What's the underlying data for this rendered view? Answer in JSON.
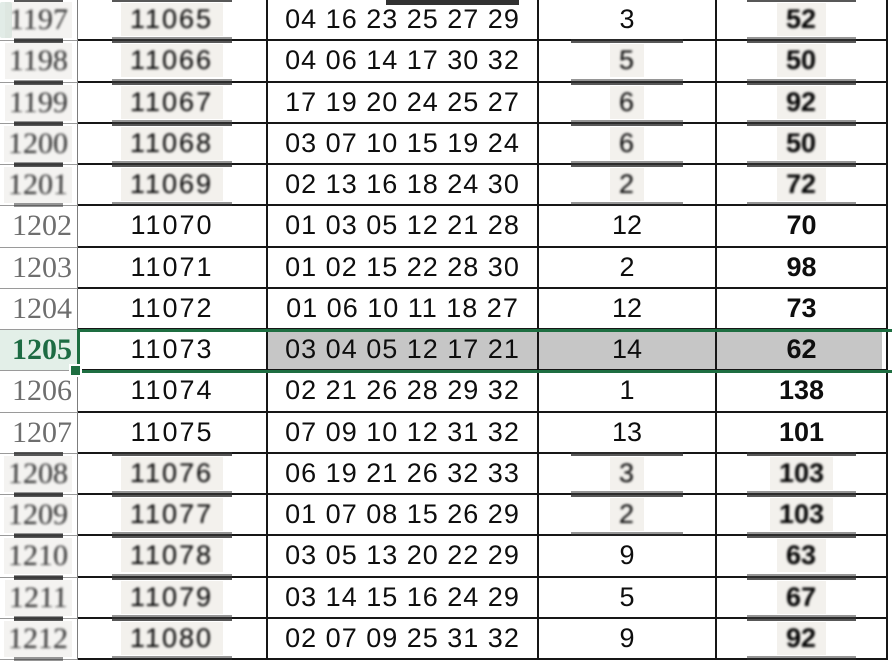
{
  "selection": {
    "selected_row_label": "1205",
    "active_cell_value": "11073"
  },
  "colors": {
    "selection_border_green": "#1e6e41",
    "selected_header_text": "#1d6b43",
    "selected_header_bg": "#e3efe8",
    "selected_range_fill": "#c6c6c6",
    "grid_line": "#161616",
    "row_header_text": "#6e6e6e"
  },
  "rows": [
    {
      "index": "1197",
      "draw_no": "11065",
      "numbers": "04 16 23 25 27 29",
      "count": "3",
      "value": "52"
    },
    {
      "index": "1198",
      "draw_no": "11066",
      "numbers": "04 06 14 17 30 32",
      "count": "5",
      "value": "50"
    },
    {
      "index": "1199",
      "draw_no": "11067",
      "numbers": "17 19 20 24 25 27",
      "count": "6",
      "value": "92"
    },
    {
      "index": "1200",
      "draw_no": "11068",
      "numbers": "03 07 10 15 19 24",
      "count": "6",
      "value": "50"
    },
    {
      "index": "1201",
      "draw_no": "11069",
      "numbers": "02 13 16 18 24 30",
      "count": "2",
      "value": "72"
    },
    {
      "index": "1202",
      "draw_no": "11070",
      "numbers": "01 03 05 12 21 28",
      "count": "12",
      "value": "70"
    },
    {
      "index": "1203",
      "draw_no": "11071",
      "numbers": "01 02 15 22 28 30",
      "count": "2",
      "value": "98"
    },
    {
      "index": "1204",
      "draw_no": "11072",
      "numbers": "01 06 10 11 18 27",
      "count": "12",
      "value": "73"
    },
    {
      "index": "1205",
      "draw_no": "11073",
      "numbers": "03 04 05 12 17 21",
      "count": "14",
      "value": "62"
    },
    {
      "index": "1206",
      "draw_no": "11074",
      "numbers": "02 21 26 28 29 32",
      "count": "1",
      "value": "138"
    },
    {
      "index": "1207",
      "draw_no": "11075",
      "numbers": "07 09 10 12 31 32",
      "count": "13",
      "value": "101"
    },
    {
      "index": "1208",
      "draw_no": "11076",
      "numbers": "06 19 21 26 32 33",
      "count": "3",
      "value": "103"
    },
    {
      "index": "1209",
      "draw_no": "11077",
      "numbers": "01 07 08 15 26 29",
      "count": "2",
      "value": "103"
    },
    {
      "index": "1210",
      "draw_no": "11078",
      "numbers": "03 05 13 20 22 29",
      "count": "9",
      "value": "63"
    },
    {
      "index": "1211",
      "draw_no": "11079",
      "numbers": "03 14 15 16 24 29",
      "count": "5",
      "value": "67"
    },
    {
      "index": "1212",
      "draw_no": "11080",
      "numbers": "02 07 09 25 31 32",
      "count": "9",
      "value": "92"
    }
  ]
}
